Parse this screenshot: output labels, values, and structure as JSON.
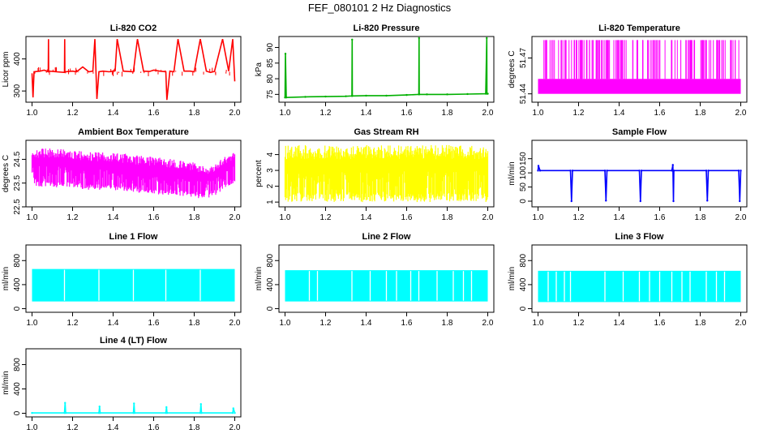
{
  "figure": {
    "title": "FEF_080101  2 Hz Diagnostics"
  },
  "chart_data": [
    {
      "type": "line",
      "title": "Li-820 CO2",
      "xlabel": "",
      "ylabel": "Licor ppm",
      "xlim": [
        0.97,
        2.03
      ],
      "ylim": [
        265,
        470
      ],
      "xticks": [
        1.0,
        1.2,
        1.4,
        1.6,
        1.8,
        2.0
      ],
      "yticks": [
        300,
        400
      ],
      "color": "#ff0000",
      "series": [
        {
          "x": [
            1.0,
            1.005,
            1.01,
            1.04,
            1.06,
            1.08,
            1.081,
            1.082,
            1.12,
            1.16,
            1.161,
            1.162,
            1.2,
            1.22,
            1.25,
            1.28,
            1.3,
            1.31,
            1.32,
            1.33,
            1.35,
            1.38,
            1.41,
            1.42,
            1.45,
            1.5,
            1.52,
            1.55,
            1.58,
            1.6,
            1.63,
            1.66,
            1.665,
            1.68,
            1.7,
            1.72,
            1.75,
            1.78,
            1.8,
            1.83,
            1.86,
            1.88,
            1.9,
            1.94,
            1.97,
            1.99,
            2.0
          ],
          "y": [
            355,
            280,
            360,
            362,
            365,
            360,
            462,
            362,
            360,
            358,
            462,
            360,
            362,
            360,
            375,
            360,
            362,
            462,
            275,
            360,
            362,
            360,
            363,
            462,
            362,
            360,
            462,
            362,
            361,
            365,
            362,
            360,
            272,
            362,
            360,
            462,
            362,
            362,
            360,
            462,
            362,
            358,
            361,
            462,
            362,
            462,
            330
          ]
        }
      ]
    },
    {
      "type": "line",
      "title": "Li-820 Pressure",
      "xlabel": "",
      "ylabel": "kPa",
      "xlim": [
        0.97,
        2.03
      ],
      "ylim": [
        72.5,
        93.5
      ],
      "xticks": [
        1.0,
        1.2,
        1.4,
        1.6,
        1.8,
        2.0
      ],
      "yticks": [
        75,
        80,
        85,
        90
      ],
      "color": "#00b000",
      "series": [
        {
          "x": [
            1.0,
            1.002,
            1.006,
            1.1,
            1.2,
            1.3,
            1.33,
            1.331,
            1.332,
            1.4,
            1.5,
            1.6,
            1.66,
            1.661,
            1.662,
            1.7,
            1.8,
            1.9,
            1.99,
            1.995,
            1.996,
            2.0
          ],
          "y": [
            74.0,
            88.0,
            74.0,
            74.2,
            74.3,
            74.4,
            74.5,
            92.5,
            74.5,
            74.6,
            74.6,
            74.8,
            75.0,
            93.0,
            75.0,
            75.0,
            75.0,
            75.1,
            75.2,
            93.0,
            75.2,
            75.2
          ]
        }
      ]
    },
    {
      "type": "area",
      "title": "Li-820 Temperature",
      "xlabel": "",
      "ylabel": "degrees C",
      "xlim": [
        0.97,
        2.03
      ],
      "ylim": [
        51.433,
        51.488
      ],
      "xticks": [
        1.0,
        1.2,
        1.4,
        1.6,
        1.8,
        2.0
      ],
      "yticks": [
        51.44,
        51.47
      ],
      "color": "#ff00ff",
      "note_values": {
        "low": 51.44,
        "mid": 51.4525,
        "high": 51.485
      }
    },
    {
      "type": "area",
      "title": "Ambient Box Temperature",
      "xlabel": "",
      "ylabel": "degrees C",
      "xlim": [
        0.97,
        2.03
      ],
      "ylim": [
        22.5,
        25.3
      ],
      "xticks": [
        1.0,
        1.2,
        1.4,
        1.6,
        1.8,
        2.0
      ],
      "yticks": [
        22.5,
        23.5,
        24.5
      ],
      "color": "#ff00ff",
      "upper": {
        "x": [
          1.0,
          1.1,
          1.2,
          1.3,
          1.4,
          1.5,
          1.6,
          1.7,
          1.8,
          1.85,
          1.9,
          1.95,
          2.0
        ],
        "y": [
          24.9,
          25.0,
          24.9,
          24.8,
          24.8,
          24.7,
          24.6,
          24.5,
          24.4,
          24.2,
          24.3,
          24.6,
          24.8
        ]
      },
      "lower": {
        "x": [
          1.0,
          1.1,
          1.2,
          1.3,
          1.4,
          1.5,
          1.6,
          1.7,
          1.8,
          1.85,
          1.9,
          1.95,
          2.0
        ],
        "y": [
          23.4,
          23.3,
          23.3,
          23.2,
          23.2,
          23.1,
          23.0,
          23.0,
          22.9,
          22.8,
          22.9,
          23.3,
          23.5
        ]
      }
    },
    {
      "type": "area",
      "title": "Gas Stream RH",
      "xlabel": "",
      "ylabel": "percent",
      "xlim": [
        0.97,
        2.03
      ],
      "ylim": [
        0.7,
        4.9
      ],
      "xticks": [
        1.0,
        1.2,
        1.4,
        1.6,
        1.8,
        2.0
      ],
      "yticks": [
        1,
        2,
        3,
        4
      ],
      "color": "#ffff00",
      "upper": {
        "x": [
          1.0,
          2.0
        ],
        "y": [
          4.6,
          4.6
        ]
      },
      "lower": {
        "x": [
          1.0,
          2.0
        ],
        "y": [
          1.0,
          1.0
        ]
      }
    },
    {
      "type": "line",
      "title": "Sample Flow",
      "xlabel": "",
      "ylabel": "ml/min",
      "xlim": [
        0.97,
        2.03
      ],
      "ylim": [
        -20,
        215
      ],
      "xticks": [
        1.0,
        1.2,
        1.4,
        1.6,
        1.8,
        2.0
      ],
      "yticks": [
        0,
        50,
        100,
        150
      ],
      "color": "#0000ff",
      "series": [
        {
          "x": [
            1.0,
            1.002,
            1.01,
            1.16,
            1.165,
            1.17,
            1.33,
            1.335,
            1.34,
            1.5,
            1.505,
            1.51,
            1.66,
            1.665,
            1.668,
            1.67,
            1.83,
            1.835,
            1.84,
            1.99,
            1.995,
            2.0
          ],
          "y": [
            108,
            125,
            108,
            108,
            0,
            108,
            108,
            2,
            108,
            108,
            0,
            108,
            108,
            128,
            0,
            108,
            108,
            2,
            108,
            108,
            0,
            108
          ]
        }
      ]
    },
    {
      "type": "area",
      "title": "Line 1 Flow",
      "xlabel": "",
      "ylabel": "ml/min",
      "xlim": [
        0.97,
        2.03
      ],
      "ylim": [
        -60,
        1060
      ],
      "xticks": [
        1.0,
        1.2,
        1.4,
        1.6,
        1.8,
        2.0
      ],
      "yticks": [
        0,
        400,
        800
      ],
      "color": "#00ffff",
      "band": {
        "low": 120,
        "high": 660
      },
      "gaps_x": [
        1.16,
        1.33,
        1.5,
        1.66,
        1.83
      ]
    },
    {
      "type": "area",
      "title": "Line 2 Flow",
      "xlabel": "",
      "ylabel": "ml/min",
      "xlim": [
        0.97,
        2.03
      ],
      "ylim": [
        -60,
        1060
      ],
      "xticks": [
        1.0,
        1.2,
        1.4,
        1.6,
        1.8,
        2.0
      ],
      "yticks": [
        0,
        400,
        800
      ],
      "color": "#00ffff",
      "band": {
        "low": 120,
        "high": 640
      },
      "gaps_x": [
        1.12,
        1.16,
        1.33,
        1.42,
        1.5,
        1.55,
        1.62,
        1.66,
        1.75,
        1.83,
        1.88,
        1.92
      ]
    },
    {
      "type": "area",
      "title": "Line 3 Flow",
      "xlabel": "",
      "ylabel": "ml/min",
      "xlim": [
        0.97,
        2.03
      ],
      "ylim": [
        -60,
        1060
      ],
      "xticks": [
        1.0,
        1.2,
        1.4,
        1.6,
        1.8,
        2.0
      ],
      "yticks": [
        0,
        400,
        800
      ],
      "color": "#00ffff",
      "band": {
        "low": 110,
        "high": 630
      },
      "gaps_x": [
        1.05,
        1.09,
        1.13,
        1.16,
        1.33,
        1.42,
        1.5,
        1.55,
        1.6,
        1.66,
        1.71,
        1.75,
        1.83,
        1.88,
        1.92
      ]
    },
    {
      "type": "line",
      "title": "Line 4 (LT) Flow",
      "xlabel": "",
      "ylabel": "ml/min",
      "xlim": [
        0.97,
        2.03
      ],
      "ylim": [
        -60,
        1060
      ],
      "xticks": [
        1.0,
        1.2,
        1.4,
        1.6,
        1.8,
        2.0
      ],
      "yticks": [
        0,
        400,
        800
      ],
      "color": "#00ffff",
      "series": [
        {
          "x": [
            1.0,
            1.16,
            1.163,
            1.166,
            1.33,
            1.333,
            1.336,
            1.5,
            1.503,
            1.506,
            1.66,
            1.663,
            1.666,
            1.83,
            1.833,
            1.836,
            1.99,
            1.993,
            2.0
          ],
          "y": [
            5,
            5,
            170,
            5,
            5,
            110,
            5,
            5,
            160,
            5,
            5,
            100,
            5,
            5,
            150,
            5,
            5,
            80,
            5
          ]
        }
      ]
    }
  ]
}
